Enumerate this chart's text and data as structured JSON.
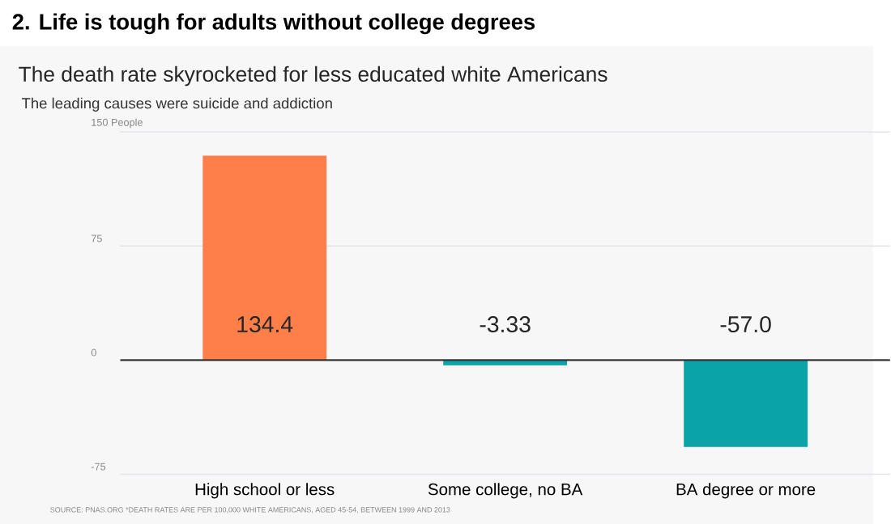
{
  "chart_data": {
    "type": "bar",
    "title": "2. Life is tough for adults without college degrees",
    "subtitle": "The death rate skyrocketed for less educated white Americans",
    "annotations": [
      "The leading causes were suicide and addiction",
      "SOURCE: PNAS.ORG *DEATH RATES ARE PER 100,000 WHITE AMERICANS, AGED 45-54, BETWEEN 1999 AND 2013"
    ],
    "categories": [
      "High school or less",
      "Some college, no BA",
      "BA degree or more"
    ],
    "values": [
      134.4,
      -3.33,
      -57.0
    ],
    "value_labels": [
      "134.4",
      "-3.33",
      "-57.0"
    ],
    "colors": [
      "#ff7f4a",
      "#0aa3a8",
      "#0aa3a8"
    ],
    "ylim": [
      -75,
      150
    ],
    "yticks": [
      -75,
      0,
      75,
      {
        "value": 150,
        "label": "150 People"
      }
    ],
    "grid": "y",
    "ref_lines": [
      {
        "axis": "y",
        "value": 0,
        "color": "#333333"
      }
    ]
  }
}
